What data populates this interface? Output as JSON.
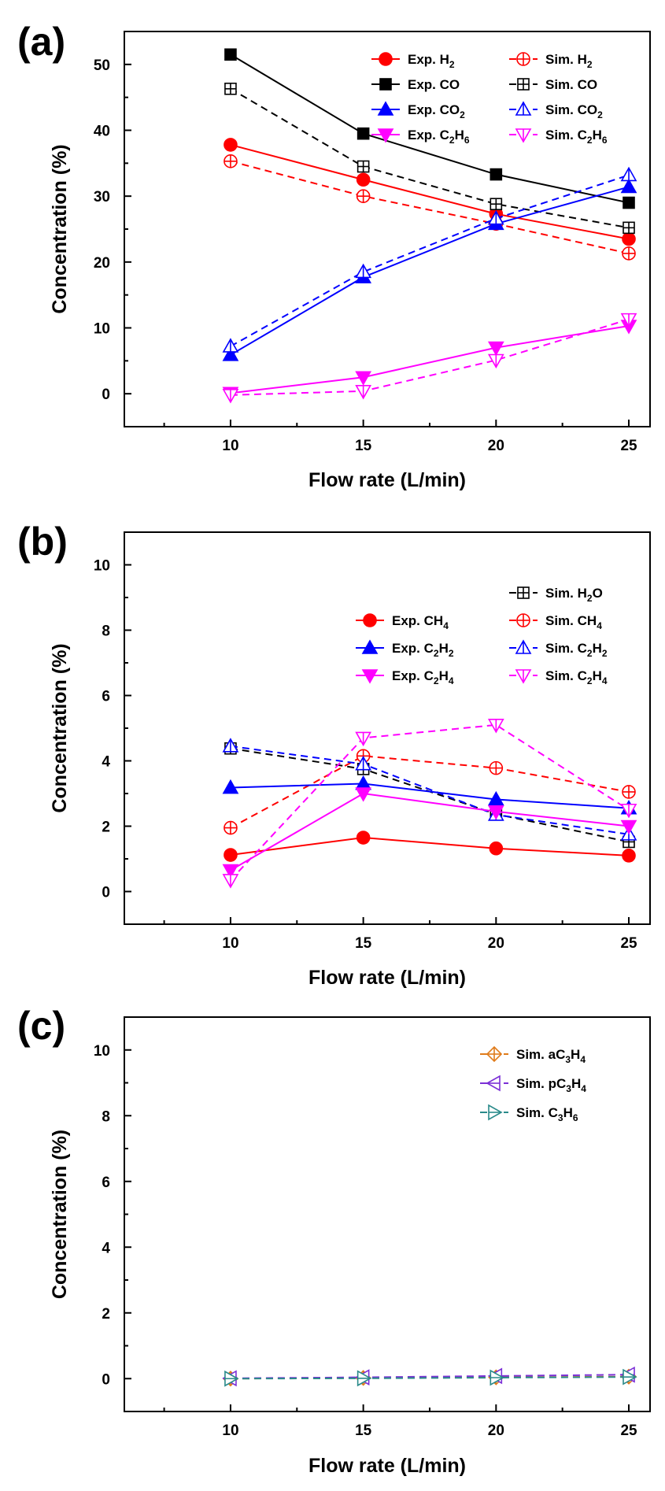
{
  "chart_data": [
    {
      "panel": "(a)",
      "type": "line",
      "xlabel": "Flow rate (L/min)",
      "ylabel": "Concentration (%)",
      "xlim": [
        6,
        25.8
      ],
      "ylim": [
        -5,
        55
      ],
      "xticks": [
        10,
        15,
        20,
        25
      ],
      "yticks": [
        0,
        10,
        20,
        30,
        40,
        50
      ],
      "x": [
        10,
        15,
        20,
        25
      ],
      "legend_columns": 2,
      "series": [
        {
          "name": "Exp. H",
          "sub": "2",
          "suffix": "",
          "color": "#ff0000",
          "dash": false,
          "marker": "circle",
          "filled": true,
          "values": [
            37.8,
            32.5,
            27.3,
            23.5
          ]
        },
        {
          "name": "Sim. H",
          "sub": "2",
          "suffix": "",
          "color": "#ff0000",
          "dash": true,
          "marker": "circle-plus",
          "filled": false,
          "values": [
            35.3,
            30.0,
            25.8,
            21.3
          ]
        },
        {
          "name": "Exp. CO",
          "sub": "",
          "suffix": "",
          "color": "#000000",
          "dash": false,
          "marker": "square",
          "filled": true,
          "values": [
            51.5,
            39.5,
            33.3,
            29.0
          ]
        },
        {
          "name": "Sim. CO",
          "sub": "",
          "suffix": "",
          "color": "#000000",
          "dash": true,
          "marker": "square-plus",
          "filled": false,
          "values": [
            46.3,
            34.5,
            28.8,
            25.2
          ]
        },
        {
          "name": "Exp. CO",
          "sub": "2",
          "suffix": "",
          "color": "#0000ff",
          "dash": false,
          "marker": "triangle-up",
          "filled": true,
          "values": [
            5.9,
            17.7,
            25.8,
            31.4
          ]
        },
        {
          "name": "Sim. CO",
          "sub": "2",
          "suffix": "",
          "color": "#0000ff",
          "dash": true,
          "marker": "triangle-up-v",
          "filled": false,
          "values": [
            7.2,
            18.5,
            26.6,
            33.2
          ]
        },
        {
          "name": "Exp. C",
          "sub": "2",
          "suffix": "H",
          "sub2": "6",
          "color": "#ff00ff",
          "dash": false,
          "marker": "triangle-down",
          "filled": true,
          "values": [
            0.1,
            2.5,
            7.0,
            10.3
          ]
        },
        {
          "name": "Sim. C",
          "sub": "2",
          "suffix": "H",
          "sub2": "6",
          "color": "#ff00ff",
          "dash": true,
          "marker": "triangle-down-v",
          "filled": false,
          "values": [
            -0.2,
            0.4,
            5.1,
            11.3
          ]
        }
      ]
    },
    {
      "panel": "(b)",
      "type": "line",
      "xlabel": "Flow rate (L/min)",
      "ylabel": "Concentration (%)",
      "xlim": [
        6,
        25.8
      ],
      "ylim": [
        -1,
        11
      ],
      "xticks": [
        10,
        15,
        20,
        25
      ],
      "yticks": [
        0,
        2,
        4,
        6,
        8,
        10
      ],
      "x": [
        10,
        15,
        20,
        25
      ],
      "legend_columns": 2,
      "legend_top_right_single": "Sim. H2O",
      "series": [
        {
          "name": "Sim. H",
          "sub": "2",
          "suffix": "O",
          "color": "#000000",
          "dash": true,
          "marker": "square-plus",
          "filled": false,
          "values": [
            4.38,
            3.75,
            2.37,
            1.52
          ],
          "legend_slot": "right-only"
        },
        {
          "name": "Exp. CH",
          "sub": "4",
          "suffix": "",
          "color": "#ff0000",
          "dash": false,
          "marker": "circle",
          "filled": true,
          "values": [
            1.12,
            1.65,
            1.32,
            1.1
          ]
        },
        {
          "name": "Sim. CH",
          "sub": "4",
          "suffix": "",
          "color": "#ff0000",
          "dash": true,
          "marker": "circle-plus",
          "filled": false,
          "values": [
            1.95,
            4.15,
            3.78,
            3.05
          ]
        },
        {
          "name": "Exp. C",
          "sub": "2",
          "suffix": "H",
          "sub2": "2",
          "color": "#0000ff",
          "dash": false,
          "marker": "triangle-up",
          "filled": true,
          "values": [
            3.18,
            3.3,
            2.82,
            2.55
          ]
        },
        {
          "name": "Sim. C",
          "sub": "2",
          "suffix": "H",
          "sub2": "2",
          "color": "#0000ff",
          "dash": true,
          "marker": "triangle-up-v",
          "filled": false,
          "values": [
            4.45,
            3.9,
            2.35,
            1.75
          ]
        },
        {
          "name": "Exp. C",
          "sub": "2",
          "suffix": "H",
          "sub2": "4",
          "color": "#ff00ff",
          "dash": false,
          "marker": "triangle-down",
          "filled": true,
          "values": [
            0.65,
            3.0,
            2.45,
            2.0
          ]
        },
        {
          "name": "Sim. C",
          "sub": "2",
          "suffix": "H",
          "sub2": "4",
          "color": "#ff00ff",
          "dash": true,
          "marker": "triangle-down-v",
          "filled": false,
          "values": [
            0.35,
            4.7,
            5.1,
            2.5
          ]
        }
      ]
    },
    {
      "panel": "(c)",
      "type": "line",
      "xlabel": "Flow rate (L/min)",
      "ylabel": "Concentration (%)",
      "xlim": [
        6,
        25.8
      ],
      "ylim": [
        -1,
        11
      ],
      "xticks": [
        10,
        15,
        20,
        25
      ],
      "yticks": [
        0,
        2,
        4,
        6,
        8,
        10
      ],
      "x": [
        10,
        15,
        20,
        25
      ],
      "legend_columns": 1,
      "series": [
        {
          "name": "Sim. aC",
          "sub": "3",
          "suffix": "H",
          "sub2": "4",
          "color": "#e07b1a",
          "dash": true,
          "marker": "diamond-plus",
          "filled": false,
          "values": [
            0.0,
            0.02,
            0.04,
            0.06
          ]
        },
        {
          "name": "Sim. pC",
          "sub": "3",
          "suffix": "H",
          "sub2": "4",
          "color": "#7b2fd6",
          "dash": true,
          "marker": "triangle-left-v",
          "filled": false,
          "values": [
            0.01,
            0.04,
            0.08,
            0.12
          ]
        },
        {
          "name": "Sim. C",
          "sub": "3",
          "suffix": "H",
          "sub2": "6",
          "color": "#2a8a8a",
          "dash": true,
          "marker": "triangle-right-v",
          "filled": false,
          "values": [
            0.0,
            0.01,
            0.03,
            0.05
          ]
        }
      ]
    }
  ]
}
